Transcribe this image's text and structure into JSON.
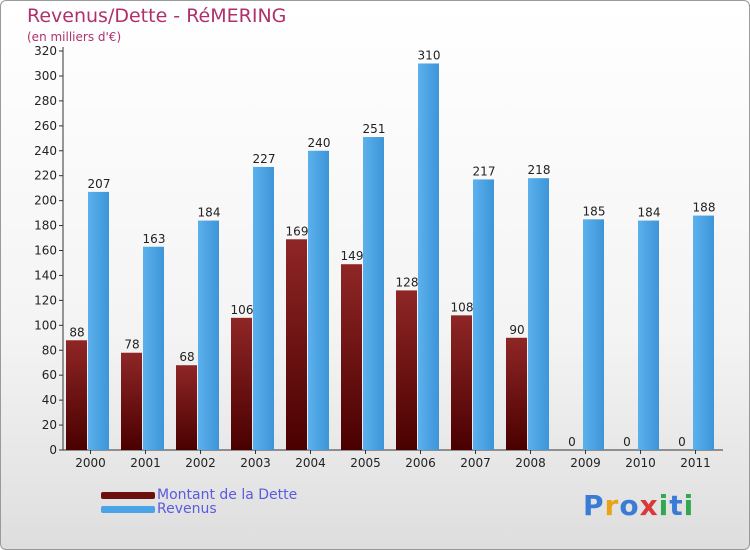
{
  "header": {
    "title": "Revenus/Dette - RéMERING",
    "subtitle": "(en milliers d'€)"
  },
  "logo": {
    "text": "Proxiti"
  },
  "colors": {
    "dette": "#8b1a1a",
    "revenus": "#4aa3e6"
  },
  "chart_data": {
    "type": "bar",
    "categories": [
      "2000",
      "2001",
      "2002",
      "2003",
      "2004",
      "2005",
      "2006",
      "2007",
      "2008",
      "2009",
      "2010",
      "2011"
    ],
    "series": [
      {
        "name": "Montant de la Dette",
        "values": [
          88,
          78,
          68,
          106,
          169,
          149,
          128,
          108,
          90,
          0,
          0,
          0
        ]
      },
      {
        "name": "Revenus",
        "values": [
          207,
          163,
          184,
          227,
          240,
          251,
          310,
          217,
          218,
          185,
          184,
          188
        ]
      }
    ],
    "ylim": [
      0,
      320
    ],
    "yticks": [
      0,
      20,
      40,
      60,
      80,
      100,
      120,
      140,
      160,
      180,
      200,
      220,
      240,
      260,
      280,
      300,
      320
    ],
    "grid": false,
    "legend": "bottom-left"
  }
}
